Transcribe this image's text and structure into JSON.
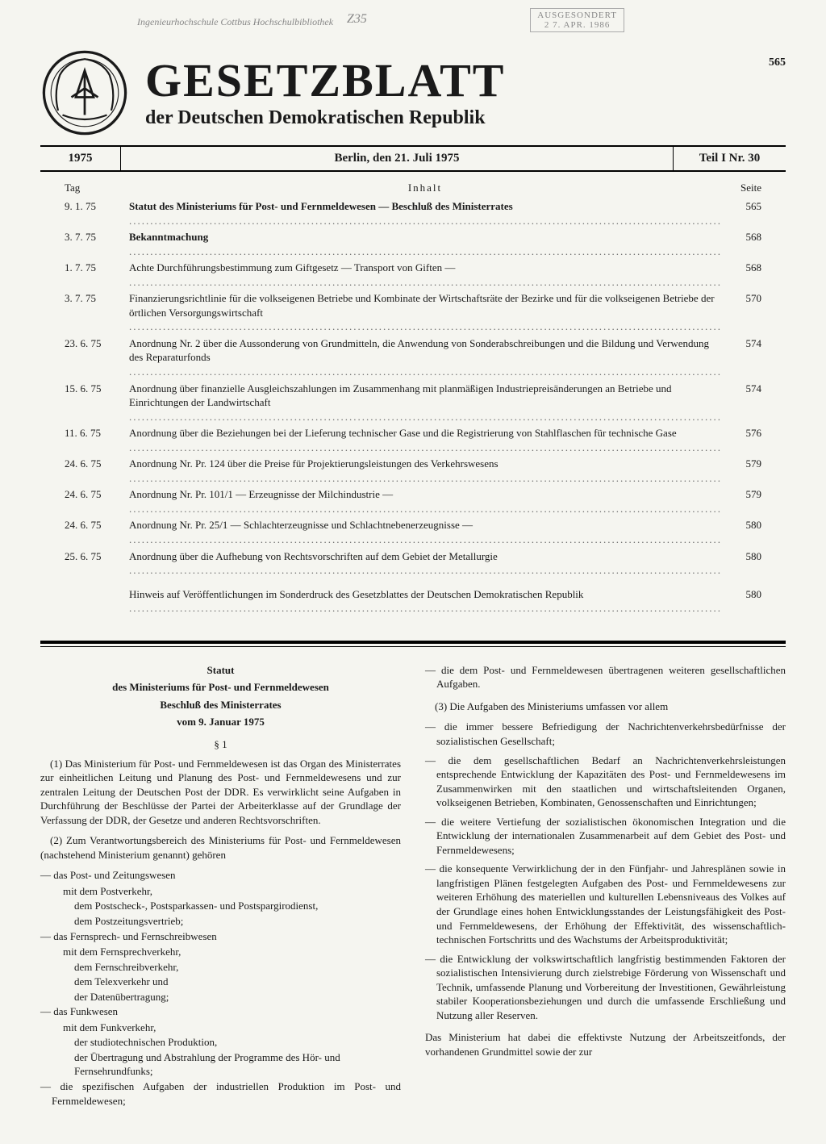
{
  "stamps": {
    "library": "Ingenieurhochschule Cottbus\nHochschulbibliothek",
    "handwritten": "Z35",
    "ausgesondert": "AUSGESONDERT",
    "ausgesondert_date": "2 7. APR. 1986"
  },
  "masthead": {
    "title": "GESETZBLATT",
    "subtitle": "der Deutschen Demokratischen Republik",
    "page_number": "565"
  },
  "header_bar": {
    "year": "1975",
    "place_date": "Berlin, den 21. Juli 1975",
    "part": "Teil I Nr. 30"
  },
  "toc": {
    "col_day": "Tag",
    "col_title": "Inhalt",
    "col_page": "Seite",
    "rows": [
      {
        "date": "9. 1. 75",
        "title": "Statut des Ministeriums für Post- und Fernmeldewesen — Beschluß des Ministerrates",
        "bold": true,
        "page": "565"
      },
      {
        "date": "3. 7. 75",
        "title": "Bekanntmachung",
        "bold": true,
        "page": "568"
      },
      {
        "date": "1. 7. 75",
        "title": "Achte Durchführungsbestimmung zum Giftgesetz — Transport von Giften —",
        "page": "568"
      },
      {
        "date": "3. 7. 75",
        "title": "Finanzierungsrichtlinie für die volkseigenen Betriebe und Kombinate der Wirtschaftsräte der Bezirke und für die volkseigenen Betriebe der örtlichen Versorgungswirtschaft",
        "page": "570"
      },
      {
        "date": "23. 6. 75",
        "title": "Anordnung Nr. 2 über die Aussonderung von Grundmitteln, die Anwendung von Sonderabschreibungen und die Bildung und Verwendung des Reparaturfonds",
        "page": "574"
      },
      {
        "date": "15. 6. 75",
        "title": "Anordnung über finanzielle Ausgleichszahlungen im Zusammenhang mit planmäßigen Industriepreisänderungen an Betriebe und Einrichtungen der Landwirtschaft",
        "page": "574"
      },
      {
        "date": "11. 6. 75",
        "title": "Anordnung über die Beziehungen bei der Lieferung technischer Gase und die Registrierung von Stahlflaschen für technische Gase",
        "page": "576"
      },
      {
        "date": "24. 6. 75",
        "title": "Anordnung Nr. Pr. 124 über die Preise für Projektierungsleistungen des Verkehrswesens",
        "page": "579"
      },
      {
        "date": "24. 6. 75",
        "title": "Anordnung Nr. Pr. 101/1 — Erzeugnisse der Milchindustrie —",
        "page": "579"
      },
      {
        "date": "24. 6. 75",
        "title": "Anordnung Nr. Pr. 25/1 — Schlachterzeugnisse und Schlachtnebenerzeugnisse —",
        "page": "580"
      },
      {
        "date": "25. 6. 75",
        "title": "Anordnung über die Aufhebung von Rechtsvorschriften auf dem Gebiet der Metallurgie",
        "page": "580"
      },
      {
        "date": "",
        "title": "Hinweis auf Veröffentlichungen im Sonderdruck des Gesetzblattes der Deutschen Demokratischen Republik",
        "page": "580",
        "gap": true
      }
    ]
  },
  "article": {
    "title1": "Statut",
    "title2": "des Ministeriums für Post- und Fernmeldewesen",
    "title3": "Beschluß des Ministerrates",
    "date": "vom 9. Januar 1975",
    "section": "§ 1",
    "p1": "(1) Das Ministerium für Post- und Fernmeldewesen ist das Organ des Ministerrates zur einheitlichen Leitung und Planung des Post- und Fernmeldewesens und zur zentralen Leitung der Deutschen Post der DDR. Es verwirklicht seine Aufgaben in Durchführung der Beschlüsse der Partei der Arbeiterklasse auf der Grundlage der Verfassung der DDR, der Gesetze und anderen Rechtsvorschriften.",
    "p2": "(2) Zum Verantwortungsbereich des Ministeriums für Post- und Fernmeldewesen (nachstehend Ministerium genannt) gehören",
    "list2": [
      {
        "t": "— das Post- und Zeitungswesen",
        "sub": [
          {
            "t": "mit dem Postverkehr,",
            "sub2": [
              "dem Postscheck-, Postsparkassen- und Postspargirodienst,",
              "dem Postzeitungsvertrieb;"
            ]
          }
        ]
      },
      {
        "t": "— das Fernsprech- und Fernschreibwesen",
        "sub": [
          {
            "t": "mit dem Fernsprechverkehr,",
            "sub2": [
              "dem Fernschreibverkehr,",
              "dem Telexverkehr und",
              "der Datenübertragung;"
            ]
          }
        ]
      },
      {
        "t": "— das Funkwesen",
        "sub": [
          {
            "t": "mit dem Funkverkehr,",
            "sub2": [
              "der studiotechnischen Produktion,",
              "der Übertragung und Abstrahlung der Programme des Hör- und Fernsehrundfunks;"
            ]
          }
        ]
      },
      {
        "t": "— die spezifischen Aufgaben der industriellen Produktion im Post- und Fernmeldewesen;"
      }
    ],
    "col2_first": "— die dem Post- und Fernmeldewesen übertragenen weiteren gesellschaftlichen Aufgaben.",
    "p3": "(3) Die Aufgaben des Ministeriums umfassen vor allem",
    "list3": [
      "— die immer bessere Befriedigung der Nachrichtenverkehrsbedürfnisse der sozialistischen Gesellschaft;",
      "— die dem gesellschaftlichen Bedarf an Nachrichtenverkehrsleistungen entsprechende Entwicklung der Kapazitäten des Post- und Fernmeldewesens im Zusammenwirken mit den staatlichen und wirtschaftsleitenden Organen, volkseigenen Betrieben, Kombinaten, Genossenschaften und Einrichtungen;",
      "— die weitere Vertiefung der sozialistischen ökonomischen Integration und die Entwicklung der internationalen Zusammenarbeit auf dem Gebiet des Post- und Fernmeldewesens;",
      "— die konsequente Verwirklichung der in den Fünfjahr- und Jahresplänen sowie in langfristigen Plänen festgelegten Aufgaben des Post- und Fernmeldewesens zur weiteren Erhöhung des materiellen und kulturellen Lebensniveaus des Volkes auf der Grundlage eines hohen Entwicklungsstandes der Leistungsfähigkeit des Post- und Fernmeldewesens, der Erhöhung der Effektivität, des wissenschaftlich-technischen Fortschritts und des Wachstums der Arbeitsproduktivität;",
      "— die Entwicklung der volkswirtschaftlich langfristig bestimmenden Faktoren der sozialistischen Intensivierung durch zielstrebige Förderung von Wissenschaft und Technik, umfassende Planung und Vorbereitung der Investitionen, Gewährleistung stabiler Kooperationsbeziehungen und durch die umfassende Erschließung und Nutzung aller Reserven."
    ],
    "p_tail": "Das Ministerium hat dabei die effektivste Nutzung der Arbeitszeitfonds, der vorhandenen Grundmittel sowie der zur"
  }
}
